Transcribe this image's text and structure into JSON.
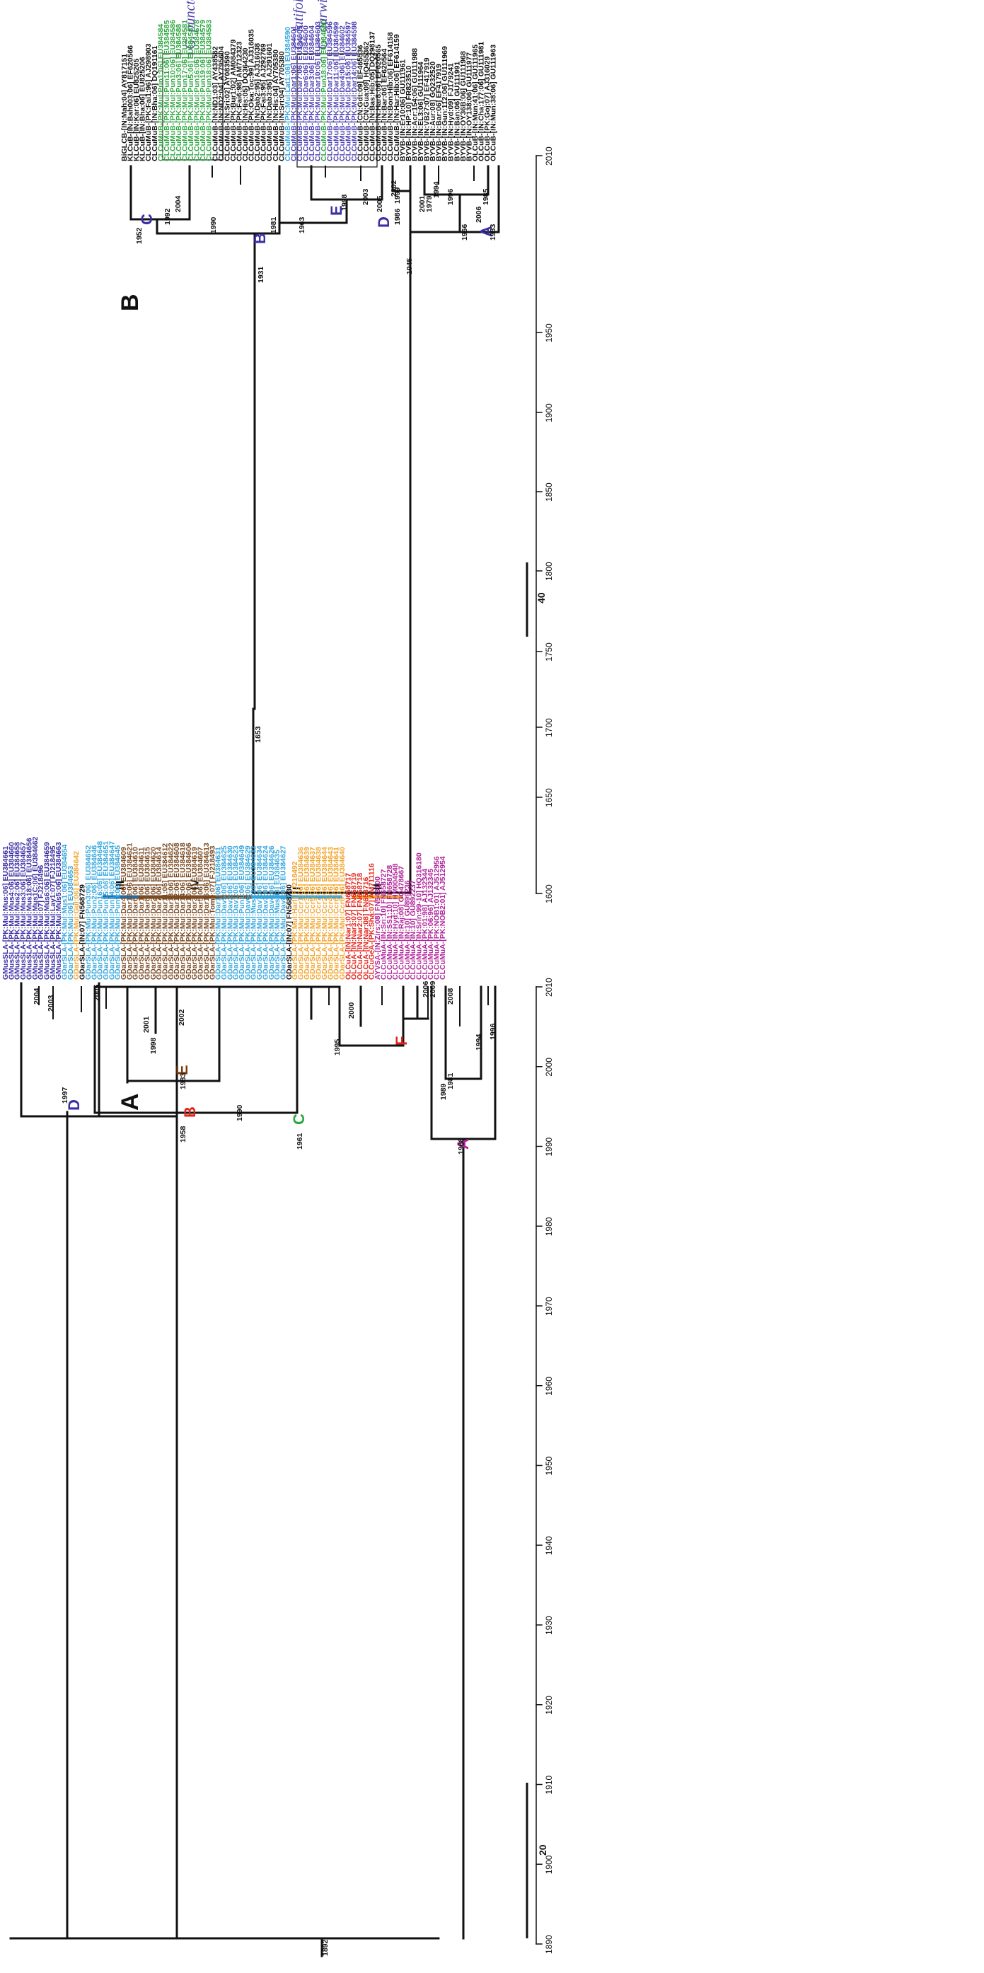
{
  "panel_a": {
    "label": "A",
    "scale_label": "20",
    "root_age": "1892",
    "lineage_labels": [
      "III",
      "IV",
      "I",
      "II"
    ],
    "lineage_colors": [
      "#1b6fb5",
      "#7a4a22",
      "#36a7dd",
      "#f2a52e"
    ],
    "clades": [
      {
        "label": "A",
        "color": "#b0249a"
      },
      {
        "label": "B",
        "color": "#e0261d"
      },
      {
        "label": "C",
        "color": "#2ea640"
      },
      {
        "label": "D",
        "color": "#3a2fa3"
      },
      {
        "label": "E",
        "color": "#7a3d12"
      },
      {
        "label": "F",
        "color": "#e0261d"
      }
    ],
    "node_ages": [
      "1958",
      "1961",
      "1968",
      "1983",
      "1990",
      "1997",
      "1998",
      "1995",
      "2000",
      "2003",
      "2004",
      "2005",
      "2001",
      "2002",
      "1989",
      "1994",
      "1996",
      "1981",
      "2006",
      "2008",
      "2009"
    ],
    "axis_ticks": [
      "1890",
      "1900",
      "1910",
      "1920",
      "1930",
      "1940",
      "1950",
      "1960",
      "1970",
      "1980",
      "1990",
      "2000",
      "2010"
    ],
    "taxa": [
      {
        "name": "GMusSLA-[PK:Mul:Mus:06] EU384661",
        "color": "#3a2fa3"
      },
      {
        "name": "GMusSLA-[PK:Mul:Mus4:06] EU384660",
        "color": "#3a2fa3"
      },
      {
        "name": "GMusSLA-[PK:Mul:Mus2:06] EU384658",
        "color": "#3a2fa3"
      },
      {
        "name": "GMusSLA-[PK:Mul:Mus3:06] EU384657",
        "color": "#3a2fa3"
      },
      {
        "name": "GMusSLA-[PK:Mul:Mus18:06] EU384656",
        "color": "#3a2fa3"
      },
      {
        "name": "GMusSLA-[PK:Mul:Mus1C:06] EU384662",
        "color": "#3a2fa3"
      },
      {
        "name": "GMusSLA-[PK:Mul:07] FJ218496",
        "color": "#3a2fa3"
      },
      {
        "name": "GMusSLA-[PK:Mul:Mus6:06] EU384659",
        "color": "#3a2fa3"
      },
      {
        "name": "GMusSLA-[PK:Mul:Lay1:07] FJ218495",
        "color": "#3a2fa3"
      },
      {
        "name": "GMusSLA-[PK:Mul:Mus5:06] EU384663",
        "color": "#3a2fa3"
      },
      {
        "name": "GDarSLA-[PK:Mul:Mus1:06] EU384654",
        "color": "#36a7dd"
      },
      {
        "name": "GDarSLA-[PK:Mul:06] EU384653",
        "color": "#36a7dd"
      },
      {
        "name": "GDarSLA-[PK:Mul:Gul:06] EU384642",
        "color": "#f2a52e"
      },
      {
        "name": "GDarSLA-[IN:07] FN568729",
        "color": "#111111"
      },
      {
        "name": "GDarSLA-[PK:Mul:Pun3:06] EU384652",
        "color": "#36a7dd"
      },
      {
        "name": "GDarSLA-[PK:Mul:Pun2:06] EU384646",
        "color": "#36a7dd"
      },
      {
        "name": "GDarSLA-[PK:Mul:Pun16:06] EU384648",
        "color": "#36a7dd"
      },
      {
        "name": "GDarSLA-[PK:Mul:Pun15:06] EU384651",
        "color": "#36a7dd"
      },
      {
        "name": "GDarSLA-[PK:Mul:Pun14:06] EU384647",
        "color": "#36a7dd"
      },
      {
        "name": "GDarSLA-[PK:Mul:Pun9:06] EU384645",
        "color": "#36a7dd"
      },
      {
        "name": "GDarSLA-[PK:Mul:Dar4:06] EU384609",
        "color": "#7a4a22"
      },
      {
        "name": "GDarSLA-[PK:Mul:Dar18:06] EU384621",
        "color": "#7a4a22"
      },
      {
        "name": "GDarSLA-[PK:Mul:Dar6:06] EU384610",
        "color": "#7a4a22"
      },
      {
        "name": "GDarSLA-[PK:Mul:Dar1:06] EU384611",
        "color": "#7a4a22"
      },
      {
        "name": "GDarSLA-[PK:Mul:Dar8:06] EU384615",
        "color": "#7a4a22"
      },
      {
        "name": "GDarSLA-[PK:Mul:Dar2:06] EU384620",
        "color": "#7a4a22"
      },
      {
        "name": "GDarSLA-[PK:Mul:Dar7:06] EU384614",
        "color": "#7a4a22"
      },
      {
        "name": "GDarSLA-[PK:Mul:Dar11:06] EU384612",
        "color": "#7a4a22"
      },
      {
        "name": "GDarSLA-[PK:Mul:Dar13:06] EU384622",
        "color": "#7a4a22"
      },
      {
        "name": "GDarSLA-[PK:Mul:Dar12:06] EU384608",
        "color": "#7a4a22"
      },
      {
        "name": "GDarSLA-[PK:Mul:Dar14:06] EU384618",
        "color": "#7a4a22"
      },
      {
        "name": "GDarSLA-[PK:Mul:Dar10:06] EU384606",
        "color": "#7a4a22"
      },
      {
        "name": "GDarSLA-[PK:Mul:Dar3:06] EU384619",
        "color": "#7a4a22"
      },
      {
        "name": "GDarSLA-[PK:Mul:Dar5:06] EU384607",
        "color": "#7a4a22"
      },
      {
        "name": "GDarSLA-[PK:Mul:Dar16:06] EU384613",
        "color": "#7a4a22"
      },
      {
        "name": "GDarSLA-[PK:Mul:Tome:07] FJ218493",
        "color": "#7a4a22"
      },
      {
        "name": "GDarSLA-[PK:Mul:Dar1:06] EU384631",
        "color": "#36a7dd"
      },
      {
        "name": "GDarSLA-[PK:Mul:Dav5:06] EU384625",
        "color": "#36a7dd"
      },
      {
        "name": "GDarSLA-[PK:Mul:Dav2:06] EU384630",
        "color": "#36a7dd"
      },
      {
        "name": "GDarSLA-[PK:Mul:Dav1:06] EU384623",
        "color": "#36a7dd"
      },
      {
        "name": "GDarSLA-[PK:Mul:Pun1:06] EU384649",
        "color": "#36a7dd"
      },
      {
        "name": "GDarSLA-[PK:Mul:Dav6:06] EU384629",
        "color": "#36a7dd"
      },
      {
        "name": "GDarSLA-[PK:Mul:MusC28] EU384632",
        "color": "#36a7dd"
      },
      {
        "name": "GDarSLA-[PK:Mul:Dav7:06] EU384634",
        "color": "#36a7dd"
      },
      {
        "name": "GDarSLA-[PK:Mul:Dav3:06] EU384624",
        "color": "#36a7dd"
      },
      {
        "name": "GDarSLA-[PK:Mul:Dav4:06] EU384626",
        "color": "#36a7dd"
      },
      {
        "name": "GDarSLA-[PK:Mul:MusH3] EU384635",
        "color": "#36a7dd"
      },
      {
        "name": "GDarSLA-[PK:Mul:Dav8:06] EU384627",
        "color": "#36a7dd"
      },
      {
        "name": "GDarSLA-[IN:07] FN568730",
        "color": "#111111"
      },
      {
        "name": "GDarSLA-[PK:Mul:Harl] FJ218492",
        "color": "#f2a52e"
      },
      {
        "name": "GDarSLA-[PK:Mul:Ccr1:06] EU384636",
        "color": "#f2a52e"
      },
      {
        "name": "GDarSLA-[PK:Mul:Ccr3:06] EU384639",
        "color": "#f2a52e"
      },
      {
        "name": "GDarSLA-[PK:Mul:Ccr5:06] EU384637",
        "color": "#f2a52e"
      },
      {
        "name": "GDarSLA-[PK:Mul:Ccr7:06] EU384638",
        "color": "#f2a52e"
      },
      {
        "name": "GDarSLA-[PK:Mul:Ccr2:06] EU384644",
        "color": "#f2a52e"
      },
      {
        "name": "GDarSLA-[PK:Mul:Ccr4:06] EU384643",
        "color": "#f2a52e"
      },
      {
        "name": "GDarSLA-[PK:Mul:Ccr6:06] EU384641",
        "color": "#f2a52e"
      },
      {
        "name": "GDarSLA-[PK:Mul:Ccr8:06] EU384640",
        "color": "#f2a52e"
      },
      {
        "name": "OLCuA-[IN:Nar1:07] FN658717",
        "color": "#e0261d"
      },
      {
        "name": "OLCuA-[IN:Nar3:07] FN658719",
        "color": "#e0261d"
      },
      {
        "name": "OLCuA-[IN:Nar2:07] FN658718",
        "color": "#e0261d"
      },
      {
        "name": "OLCuA-[IN:Nar:08] FN658716",
        "color": "#e0261d"
      },
      {
        "name": "CLCuGeA-[PK:Sha:07] AM711116",
        "color": "#e0261d"
      },
      {
        "name": "AYVSA-[IN:Zirs:08] FN543100",
        "color": "#b0249a"
      },
      {
        "name": "CLCuMuA-[IN:Sri:10] FN658727",
        "color": "#b0249a"
      },
      {
        "name": "CLCuMuA-[IN:SS1:10] FN658728",
        "color": "#b0249a"
      },
      {
        "name": "CLCuMuA-[IN:Hyd:10] HM004548",
        "color": "#b0249a"
      },
      {
        "name": "CLCuMuA-[IN:Raj:08] GQ478667",
        "color": "#b0249a"
      },
      {
        "name": "CLCuMuA-[IN:10] GU899236",
        "color": "#b0249a"
      },
      {
        "name": "CLCuMuA-[IN:10] GU892237",
        "color": "#b0249a"
      },
      {
        "name": "CLCuMuA-[IN:Srin:99-10] HQ316180",
        "color": "#b0249a"
      },
      {
        "name": "CLCuMuA-[PK:01:98] AJ132344",
        "color": "#b0249a"
      },
      {
        "name": "CLCuMuA-[PK:06:96] AJ132345",
        "color": "#b0249a"
      },
      {
        "name": "CLCuMuA-[PK:NOB1:01] AJ512956",
        "color": "#b0249a"
      },
      {
        "name": "CLCuMuA-[PK:NOB2:01] AJ512954",
        "color": "#b0249a"
      }
    ]
  },
  "panel_b": {
    "label": "B",
    "scale_label": "40",
    "root_age": "1653",
    "species_labels": [
      "G. punctatum",
      "G. latifolium",
      "G. darwinii"
    ],
    "clades": [
      {
        "label": "A",
        "color": "#3a2fa3"
      },
      {
        "label": "B",
        "color": "#3a2fa3"
      },
      {
        "label": "C",
        "color": "#3a2fa3"
      },
      {
        "label": "D",
        "color": "#3a2fa3"
      },
      {
        "label": "E",
        "color": "#3a2fa3"
      }
    ],
    "node_ages": [
      "1952",
      "1931",
      "1945",
      "1963",
      "1966",
      "1981",
      "1986",
      "1990",
      "1992",
      "1998",
      "1999",
      "2001",
      "2002",
      "2003",
      "2004",
      "2005",
      "2006",
      "1979",
      "1983",
      "1985",
      "1994",
      "1996"
    ],
    "axis_ticks": [
      "1600",
      "1650",
      "1700",
      "1750",
      "1800",
      "1850",
      "1900",
      "1950",
      "2010"
    ],
    "taxa": [
      {
        "name": "BiGLCB-[IN:Mah:04] AY817151",
        "color": "#111111"
      },
      {
        "name": "KLCuB-[IN:Bah003:06] EF620566",
        "color": "#111111"
      },
      {
        "name": "KLCuB-[IN:Kar:06] EU825205",
        "color": "#111111"
      },
      {
        "name": "KLCuB-[IN:Bha:06] EU825206",
        "color": "#111111"
      },
      {
        "name": "CLCuMuB-[PK:Fai1:96] AJ298903",
        "color": "#111111"
      },
      {
        "name": "CLCuMuB-[IN:Bha:06] DQ191161",
        "color": "#111111"
      },
      {
        "name": "CLCuMuB-[PK:Mul:Pun1:06] EU384584",
        "color": "#2ea640"
      },
      {
        "name": "CLCuMuB-[PK:Mul:Pun11:06] EU384585",
        "color": "#2ea640"
      },
      {
        "name": "CLCuMuB-[PK:Mul:Pun10:06] EU384586",
        "color": "#2ea640"
      },
      {
        "name": "CLCuMuB-[PK:Mul:Pun3:06] EU384588",
        "color": "#2ea640"
      },
      {
        "name": "CLCuMuB-[PK:Mul:Pun17:06] EU384581",
        "color": "#2ea640"
      },
      {
        "name": "CLCuMuB-[PK:Mul:Pun5:06] EU384587",
        "color": "#2ea640"
      },
      {
        "name": "CLCuMuB-[PK:Mul:Pun16:06] EU384578",
        "color": "#2ea640"
      },
      {
        "name": "CLCuMuB-[PK:Mul:Pun19:06] EU384579",
        "color": "#2ea640"
      },
      {
        "name": "CLCuMuB-[PK:Mul:Pun18:06] EU384583",
        "color": "#2ea640"
      },
      {
        "name": "CLCuMuB-[IN:ND1:03] AY438562",
        "color": "#111111"
      },
      {
        "name": "CLCuMuB-[IN:ND2:04] AY795604",
        "color": "#111111"
      },
      {
        "name": "CLCuMuB-[IN:Sri:02] AY083590",
        "color": "#111111"
      },
      {
        "name": "CLCuMuB-[PK:Bur1:02] AM084379",
        "color": "#111111"
      },
      {
        "name": "CLCuMuB-[PK:Fai6:98] AM712323",
        "color": "#111111"
      },
      {
        "name": "CLCuMuB-[IN:His:05] DQ364230",
        "color": "#111111"
      },
      {
        "name": "CLCuMuB-[PK:Oka:Toc:99] AJ316035",
        "color": "#111111"
      },
      {
        "name": "CLCuMuB-[IN:Dab2:95] AJ316038",
        "color": "#111111"
      },
      {
        "name": "CLCuMuB-[PK:Fai3:95] AJ292769",
        "color": "#111111"
      },
      {
        "name": "CLCuMuB-[IN:Dab3:95] AJ291601",
        "color": "#111111"
      },
      {
        "name": "CLCuMuB-[IN:His:04] AY705380",
        "color": "#111111"
      },
      {
        "name": "CLCuMuB-[IN:Sri:04] AY705380",
        "color": "#111111"
      },
      {
        "name": "CLCuMuB-[PK:Mul:Lat1:06] EU384590",
        "color": "#36a7dd"
      },
      {
        "name": "CLCuMuB-[PK:Mul:Dar1:06] EU384601",
        "color": "#4b3fb0"
      },
      {
        "name": "CLCuMuB-[PK:Mul:Dar7:06] EU384605",
        "color": "#4b3fb0"
      },
      {
        "name": "CLCuMuB-[PK:Mul:Dar6:06] EU384600",
        "color": "#4b3fb0"
      },
      {
        "name": "CLCuMuB-[PK:Mul:Dar3:06] EU384604",
        "color": "#4b3fb0"
      },
      {
        "name": "CLCuMuB-[PK:Mul:Dar10:06] EU384603",
        "color": "#4b3fb0"
      },
      {
        "name": "CLCuMuB-[PK:Mul:Pun18:06] EU384580",
        "color": "#2ea640"
      },
      {
        "name": "CLCuMuB-[PK:Mul:Dar17:06] EU384596",
        "color": "#4b3fb0"
      },
      {
        "name": "CLCuMuB-[PK:Mul:Dar11:06] EU384599",
        "color": "#4b3fb0"
      },
      {
        "name": "CLCuMuB-[PK:Mul:Dar4:06] EU384602",
        "color": "#4b3fb0"
      },
      {
        "name": "CLCuMuB-[PK:Mul:Dar15:06] EU384597",
        "color": "#4b3fb0"
      },
      {
        "name": "CLCuMuB-[PK:Mul:Dar14:06] EU384598",
        "color": "#4b3fb0"
      },
      {
        "name": "CLCuMuB-[CN:Gdt:09] EF465536",
        "color": "#111111"
      },
      {
        "name": "CLCuMuB-[CN:Gua:09] HQ455362",
        "color": "#111111"
      },
      {
        "name": "CLCuMuB-[IN:Bas:Hib:05] DQ298137",
        "color": "#111111"
      },
      {
        "name": "CLCuMuB-[IN:Har8:06] EF620565",
        "color": "#111111"
      },
      {
        "name": "CLCuMuB-[IN:Bar:06] EF620564",
        "color": "#111111"
      },
      {
        "name": "CLCuMuB-[IN:Bon:Hib:06] EF614158",
        "color": "#111111"
      },
      {
        "name": "CLCuMuB-[IN:Har:Hib:06] EF614159",
        "color": "#111111"
      },
      {
        "name": "BYVB-[IN:Er10:06] GU111961",
        "color": "#111111"
      },
      {
        "name": "BYVB-[IN:HP:10] FR823510",
        "color": "#111111"
      },
      {
        "name": "BYVB-[IN:Acr:154:06] GU111988",
        "color": "#111111"
      },
      {
        "name": "BYVB-[IN:EL3:06] GU111964",
        "color": "#111111"
      },
      {
        "name": "BYVB-[IN:VB27:07] EF417919",
        "color": "#111111"
      },
      {
        "name": "BYVB-[IN:Aur:08] GQ232520",
        "color": "#111111"
      },
      {
        "name": "BYVB-[IN:Bar:06] EF417919",
        "color": "#111111"
      },
      {
        "name": "BYVB-[IN:Gun:112:06] GU111969",
        "color": "#111111"
      },
      {
        "name": "BYVB-[IN:Hyd:09] FJ179241",
        "color": "#111111"
      },
      {
        "name": "BYVB-[IN:Ban:06] GU111991",
        "color": "#111111"
      },
      {
        "name": "BYVB-[IN:OY36B:06] GU111968",
        "color": "#111111"
      },
      {
        "name": "BYVB-[IN:OY138:06] GU111977",
        "color": "#111111"
      },
      {
        "name": "OLCuB-[IN:Mun:41:06] GU111965",
        "color": "#111111"
      },
      {
        "name": "OLCuB-[IN:Cha:177:06] GU111981",
        "color": "#111111"
      },
      {
        "name": "OLCuB-[PK:Goj:07] AJ316029",
        "color": "#111111"
      },
      {
        "name": "OLCuB-[IN:Mun:38:06] GU111963",
        "color": "#111111"
      }
    ]
  }
}
